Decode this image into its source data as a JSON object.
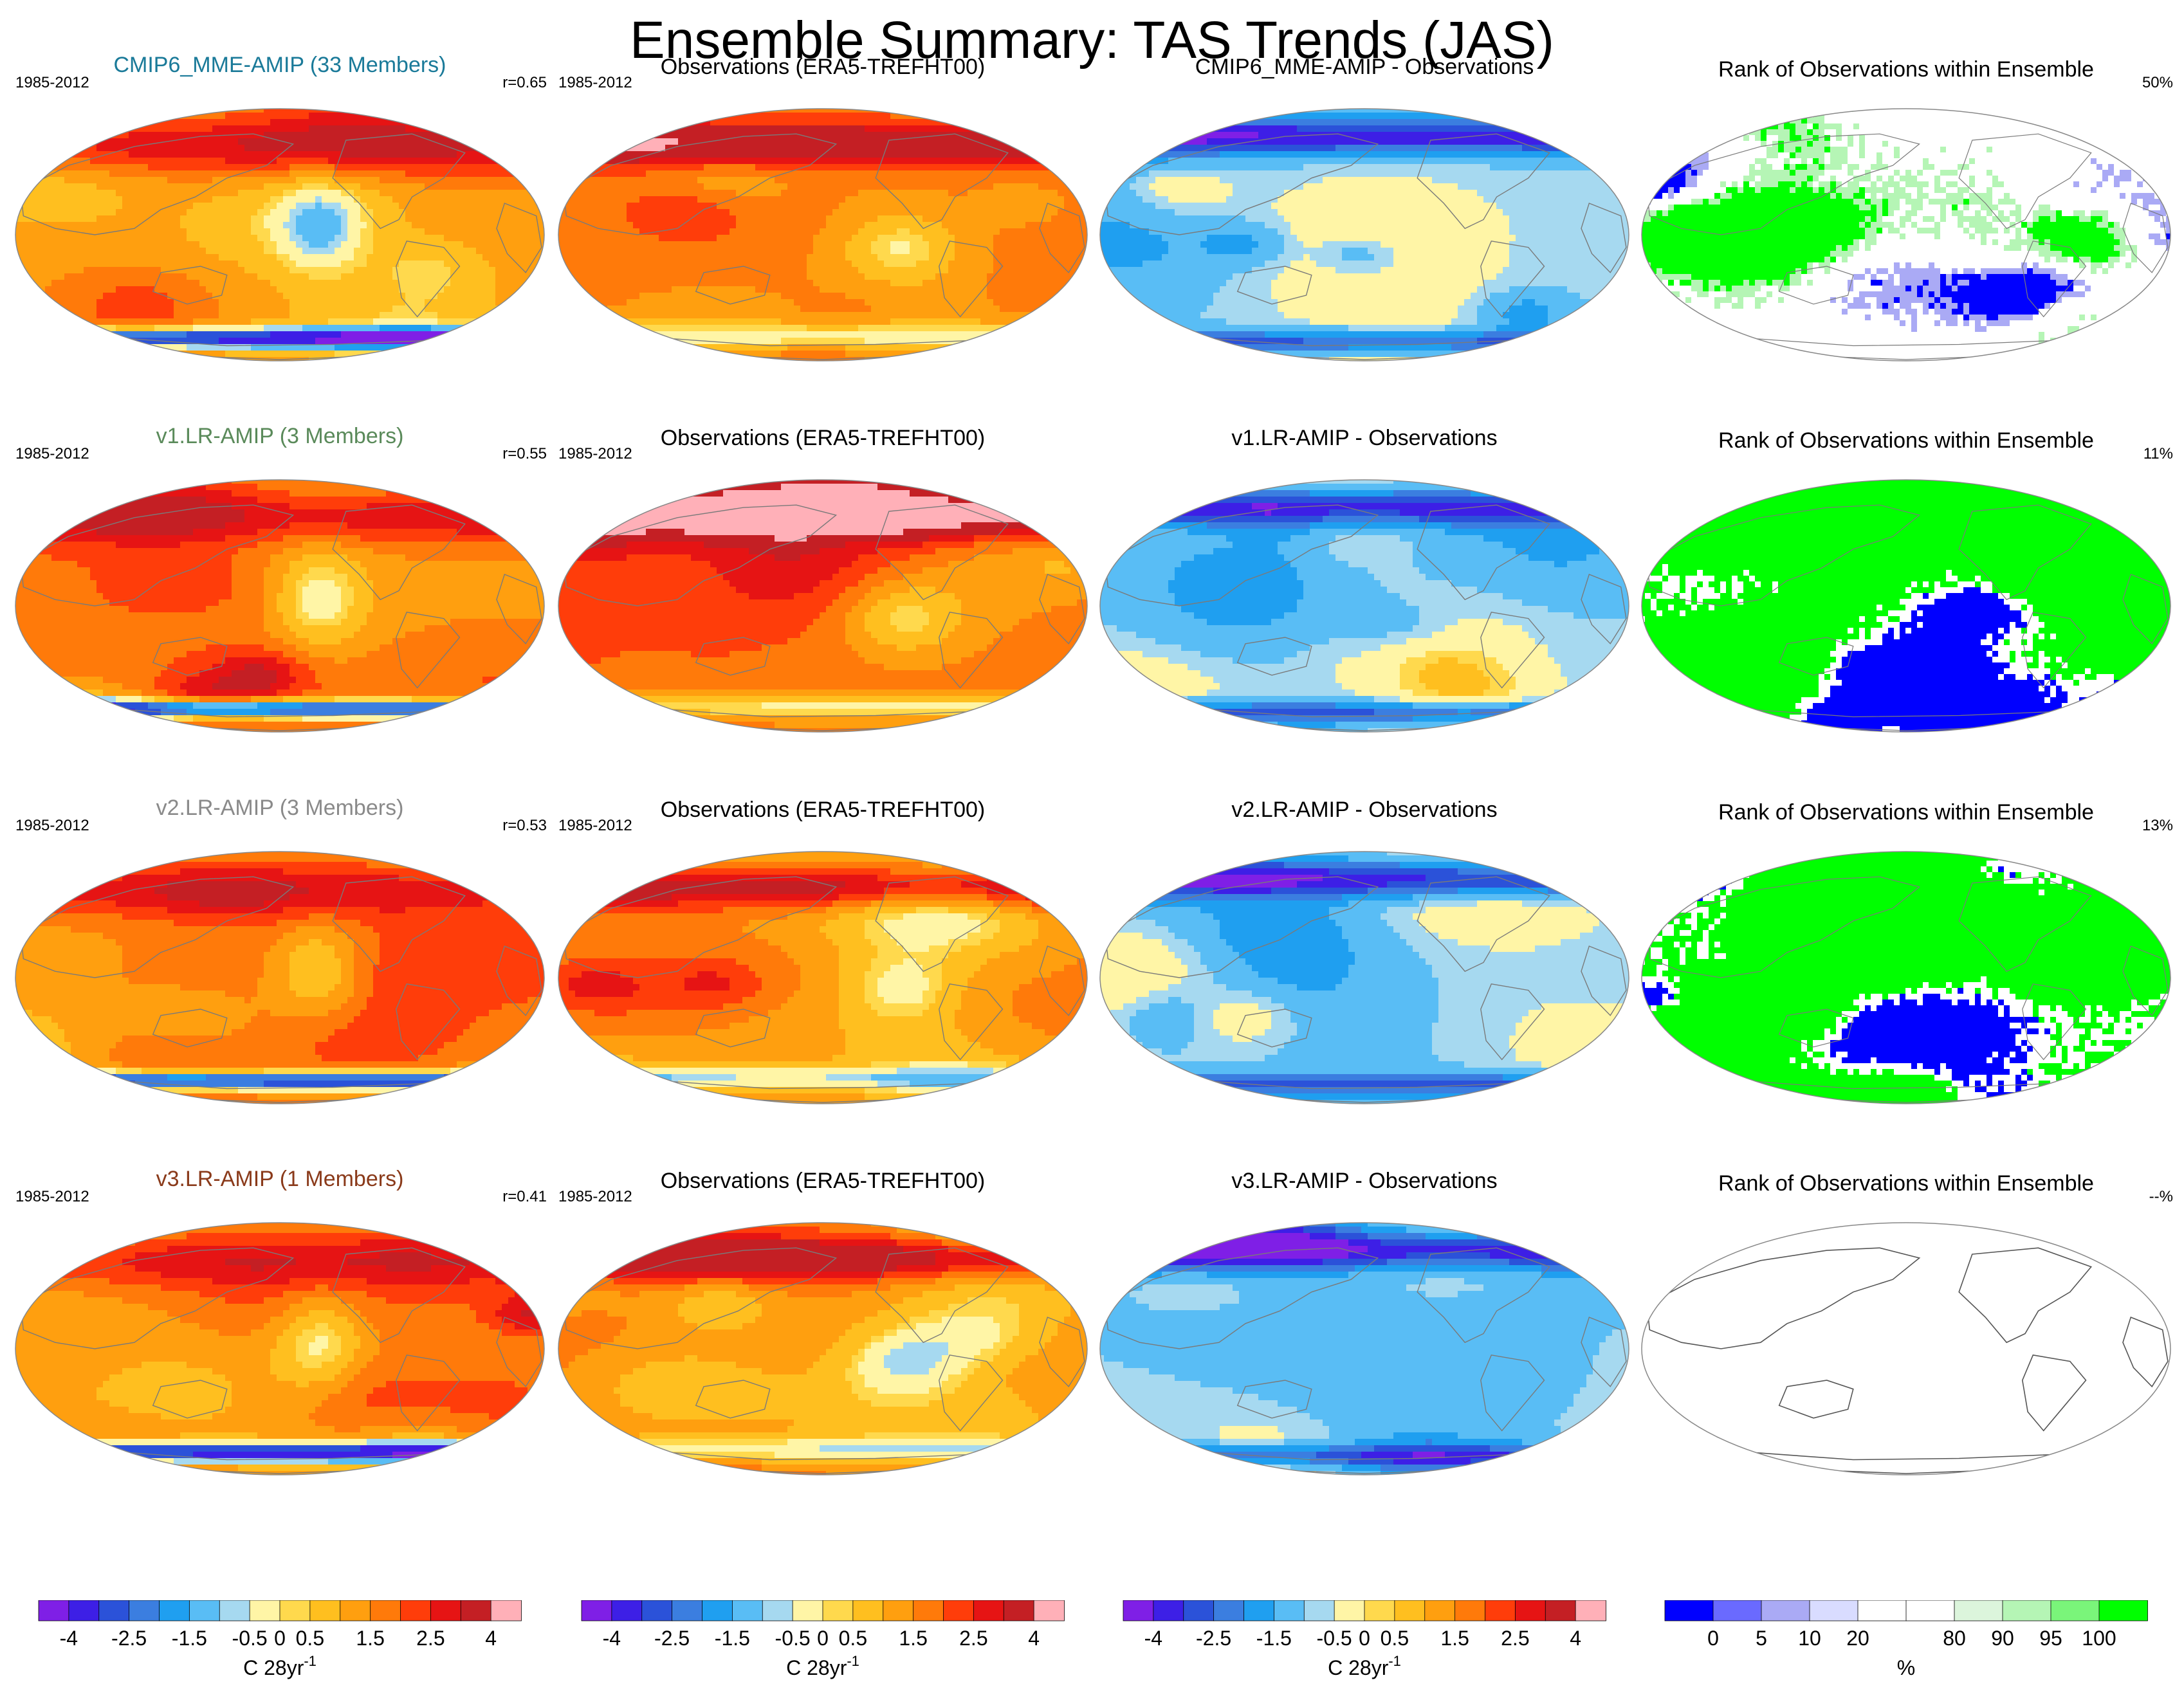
{
  "title": "Ensemble Summary: TAS Trends (JAS)",
  "colors": {
    "trend_scale": [
      "#7f1fe6",
      "#3d1fe6",
      "#2b52d9",
      "#3b7ee0",
      "#1f9ff0",
      "#59bdf5",
      "#a6d9f0",
      "#fff5a6",
      "#ffd94d",
      "#ffbf1f",
      "#ff9f0f",
      "#ff7a0a",
      "#ff3d0a",
      "#e61414",
      "#c41f24",
      "#ffb0b8"
    ],
    "rank_scale": [
      "#0000ff",
      "#6a6aff",
      "#aaaaf5",
      "#d9dcff",
      "#ffffff",
      "#ffffff",
      "#dcf5dc",
      "#b5f5b5",
      "#7af57a",
      "#00ff00"
    ],
    "coastline": "#7a7a7a",
    "title_colors": {
      "cmip6": "#1a7a99",
      "v1": "#5a8a5a",
      "v2": "#8a8a8a",
      "v3": "#8a3a1a"
    }
  },
  "rows": [
    {
      "model_title": "CMIP6_MME-AMIP (33 Members)",
      "period": "1985-2012",
      "correlation": "r=0.65",
      "obs_title": "Observations (ERA5-TREFHT00)",
      "obs_period": "1985-2012",
      "diff_title": "CMIP6_MME-AMIP - Observations",
      "rank_title": "Rank of Observations within Ensemble",
      "rank_percent": "50%"
    },
    {
      "model_title": "v1.LR-AMIP (3 Members)",
      "period": "1985-2012",
      "correlation": "r=0.55",
      "obs_title": "Observations (ERA5-TREFHT00)",
      "obs_period": "1985-2012",
      "diff_title": "v1.LR-AMIP - Observations",
      "rank_title": "Rank of Observations within Ensemble",
      "rank_percent": "11%"
    },
    {
      "model_title": "v2.LR-AMIP (3 Members)",
      "period": "1985-2012",
      "correlation": "r=0.53",
      "obs_title": "Observations (ERA5-TREFHT00)",
      "obs_period": "1985-2012",
      "diff_title": "v2.LR-AMIP - Observations",
      "rank_title": "Rank of Observations within Ensemble",
      "rank_percent": "13%"
    },
    {
      "model_title": "v3.LR-AMIP (1 Members)",
      "period": "1985-2012",
      "correlation": "r=0.41",
      "obs_title": "Observations (ERA5-TREFHT00)",
      "obs_period": "1985-2012",
      "diff_title": "v3.LR-AMIP - Observations",
      "rank_title": "Rank of Observations within Ensemble",
      "rank_percent": "--%"
    }
  ],
  "colorbars": [
    {
      "tick_labels": [
        "-4",
        "-2.5",
        "-1.5",
        "-0.5",
        "0",
        "0.5",
        "1.5",
        "2.5",
        "4"
      ],
      "unit": "C 28yr",
      "unit_exp": "-1"
    },
    {
      "tick_labels": [
        "-4",
        "-2.5",
        "-1.5",
        "-0.5",
        "0",
        "0.5",
        "1.5",
        "2.5",
        "4"
      ],
      "unit": "C 28yr",
      "unit_exp": "-1"
    },
    {
      "tick_labels": [
        "-4",
        "-2.5",
        "-1.5",
        "-0.5",
        "0",
        "0.5",
        "1.5",
        "2.5",
        "4"
      ],
      "unit": "C 28yr",
      "unit_exp": "-1"
    },
    {
      "tick_labels": [
        "0",
        "5",
        "10",
        "20",
        "80",
        "90",
        "95",
        "100"
      ],
      "unit": "%",
      "unit_exp": ""
    }
  ],
  "chart_data": {
    "type": "heatmap",
    "title": "Ensemble Summary: TAS Trends (JAS)",
    "projection": "global map (Robinson-like ellipse)",
    "trend_levels": [
      -4,
      -3,
      -2.5,
      -2,
      -1.5,
      -1,
      -0.5,
      -0.25,
      0.25,
      0.5,
      1,
      1.5,
      2,
      2.5,
      3,
      4
    ],
    "trend_tick_labels": [
      "-4",
      "-2.5",
      "-1.5",
      "-0.5",
      "0",
      "0.5",
      "1.5",
      "2.5",
      "4"
    ],
    "trend_unit": "C 28yr-1",
    "rank_levels": [
      0,
      5,
      10,
      20,
      80,
      90,
      95,
      100
    ],
    "rank_unit": "%",
    "panels": [
      {
        "row": 1,
        "column": "model",
        "title": "CMIP6_MME-AMIP (33 Members)",
        "r": 0.65
      },
      {
        "row": 1,
        "column": "observations",
        "title": "Observations (ERA5-TREFHT00)"
      },
      {
        "row": 1,
        "column": "difference",
        "title": "CMIP6_MME-AMIP - Observations"
      },
      {
        "row": 1,
        "column": "rank",
        "title": "Rank of Observations within Ensemble",
        "percent": 50
      },
      {
        "row": 2,
        "column": "model",
        "title": "v1.LR-AMIP (3 Members)",
        "r": 0.55
      },
      {
        "row": 2,
        "column": "observations",
        "title": "Observations (ERA5-TREFHT00)"
      },
      {
        "row": 2,
        "column": "difference",
        "title": "v1.LR-AMIP - Observations"
      },
      {
        "row": 2,
        "column": "rank",
        "title": "Rank of Observations within Ensemble",
        "percent": 11
      },
      {
        "row": 3,
        "column": "model",
        "title": "v2.LR-AMIP (3 Members)",
        "r": 0.53
      },
      {
        "row": 3,
        "column": "observations",
        "title": "Observations (ERA5-TREFHT00)"
      },
      {
        "row": 3,
        "column": "difference",
        "title": "v2.LR-AMIP - Observations"
      },
      {
        "row": 3,
        "column": "rank",
        "title": "Rank of Observations within Ensemble",
        "percent": 13
      },
      {
        "row": 4,
        "column": "model",
        "title": "v3.LR-AMIP (1 Members)",
        "r": 0.41
      },
      {
        "row": 4,
        "column": "observations",
        "title": "Observations (ERA5-TREFHT00)"
      },
      {
        "row": 4,
        "column": "difference",
        "title": "v3.LR-AMIP - Observations"
      },
      {
        "row": 4,
        "column": "rank",
        "title": "Rank of Observations within Ensemble",
        "percent": null
      }
    ]
  }
}
